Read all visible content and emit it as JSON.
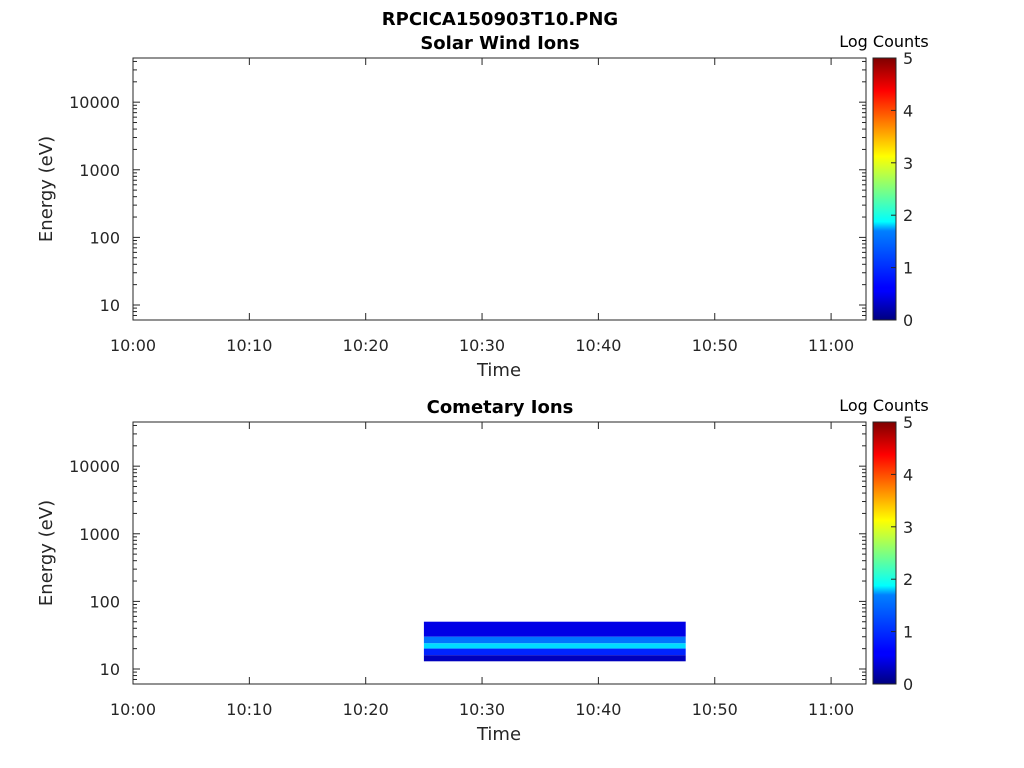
{
  "figure_title": "RPCICA150903T10.PNG",
  "chart_data": [
    {
      "type": "heatmap",
      "title": "Solar Wind Ions",
      "xlabel": "Time",
      "ylabel": "Energy (eV)",
      "yscale": "log",
      "xlim": [
        "10:00",
        "11:03"
      ],
      "ylim": [
        6,
        45000
      ],
      "x_ticks": [
        "10:00",
        "10:10",
        "10:20",
        "10:30",
        "10:40",
        "10:50",
        "11:00"
      ],
      "y_ticks": [
        "10",
        "100",
        "1000",
        "10000"
      ],
      "y_tick_values": [
        10,
        100,
        1000,
        10000
      ],
      "colorbar": {
        "label": "Log Counts",
        "range": [
          0,
          5
        ],
        "ticks": [
          "0",
          "1",
          "2",
          "3",
          "4",
          "5"
        ],
        "colormap": "jet"
      },
      "grid": false,
      "data": []
    },
    {
      "type": "heatmap",
      "title": "Cometary Ions",
      "xlabel": "Time",
      "ylabel": "Energy (eV)",
      "yscale": "log",
      "xlim": [
        "10:00",
        "11:03"
      ],
      "ylim": [
        6,
        45000
      ],
      "x_ticks": [
        "10:00",
        "10:10",
        "10:20",
        "10:30",
        "10:40",
        "10:50",
        "11:00"
      ],
      "y_ticks": [
        "10",
        "100",
        "1000",
        "10000"
      ],
      "y_tick_values": [
        10,
        100,
        1000,
        10000
      ],
      "colorbar": {
        "label": "Log Counts",
        "range": [
          0,
          5
        ],
        "ticks": [
          "0",
          "1",
          "2",
          "3",
          "4",
          "5"
        ],
        "colormap": "jet"
      },
      "grid": false,
      "data": [
        {
          "time_start": "10:25",
          "time_end": "10:47:30",
          "energy_low": 30,
          "energy_high": 50,
          "log_counts": 0.5
        },
        {
          "time_start": "10:25",
          "time_end": "10:47:30",
          "energy_low": 24,
          "energy_high": 30,
          "log_counts": 1.2
        },
        {
          "time_start": "10:25",
          "time_end": "10:47:30",
          "energy_low": 20,
          "energy_high": 24,
          "log_counts": 1.7
        },
        {
          "time_start": "10:25",
          "time_end": "10:47:30",
          "energy_low": 16,
          "energy_high": 20,
          "log_counts": 0.8
        },
        {
          "time_start": "10:25",
          "time_end": "10:47:30",
          "energy_low": 13,
          "energy_high": 16,
          "log_counts": 0.3
        }
      ]
    }
  ]
}
